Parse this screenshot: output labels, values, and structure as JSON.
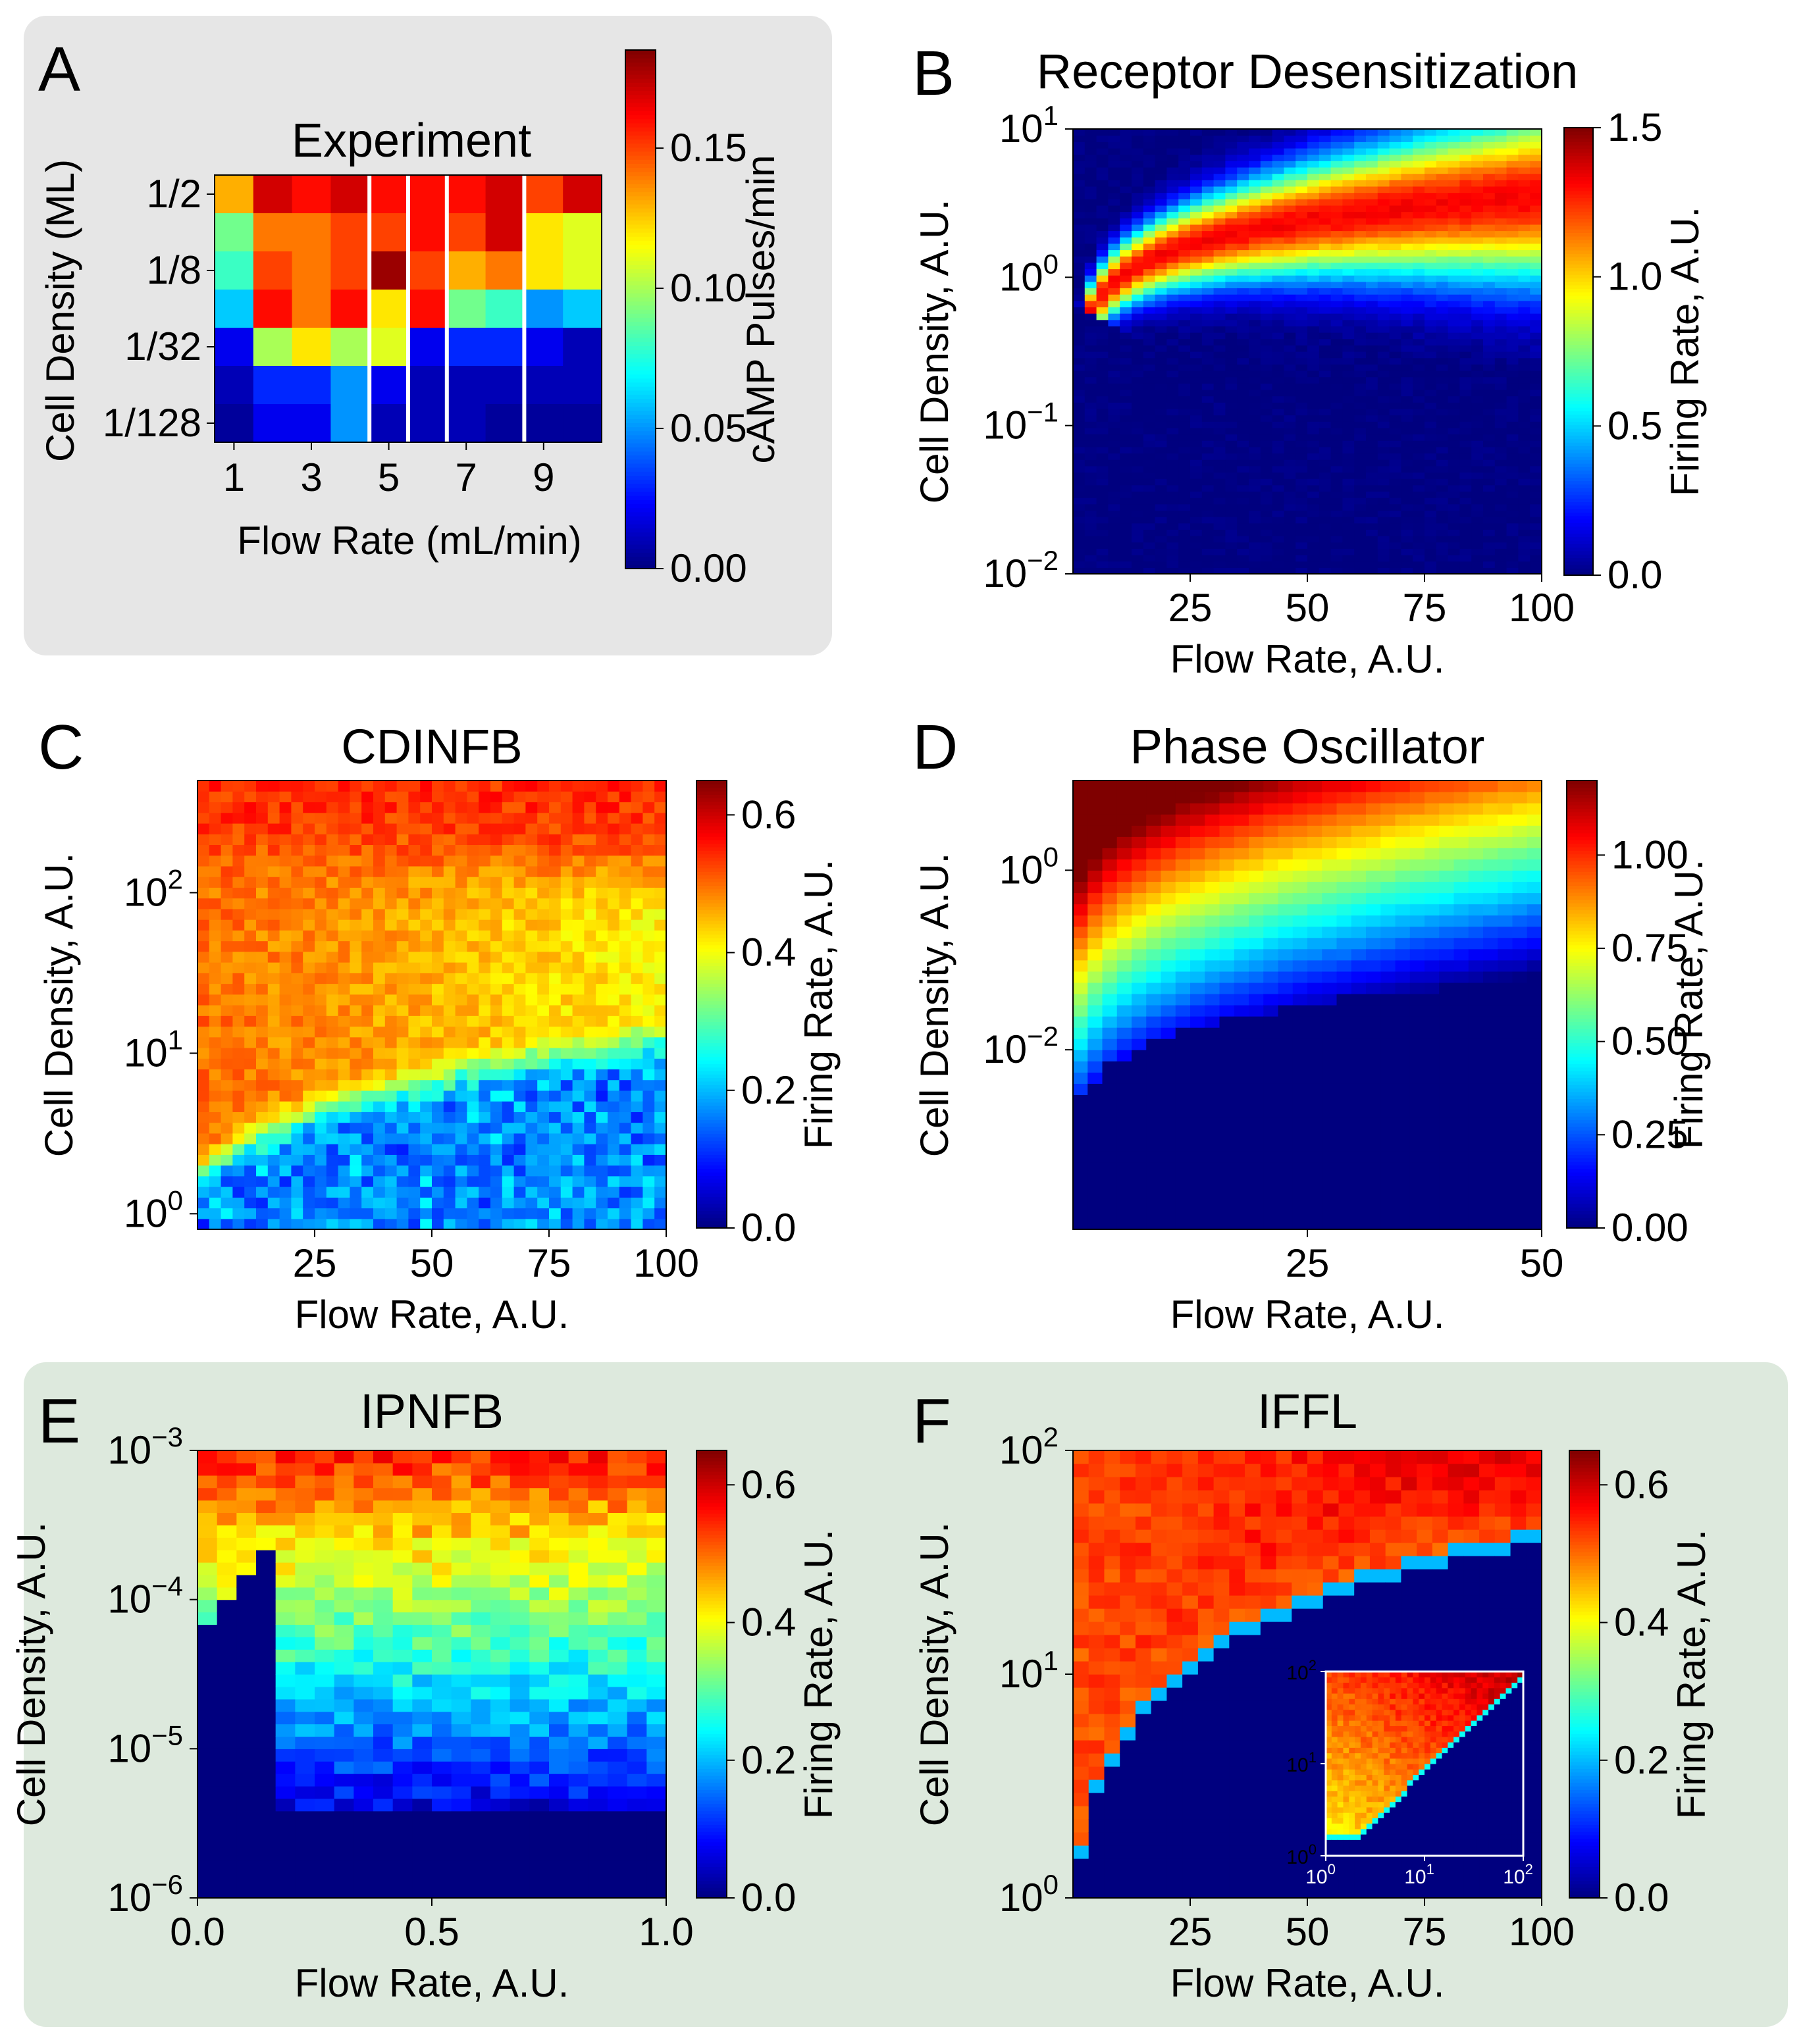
{
  "figure": {
    "panel_letters": [
      "A",
      "B",
      "C",
      "D",
      "E",
      "F"
    ],
    "colormap": [
      "#00007f",
      "#0000ff",
      "#007fff",
      "#00ffff",
      "#7fff7f",
      "#ffff00",
      "#ff7f00",
      "#ff0000",
      "#7f0000"
    ],
    "panel_bg": {
      "A": "#e6e6e6",
      "EF": "#dde9dd"
    }
  },
  "chart_data": [
    {
      "panel": "A",
      "type": "heatmap",
      "title": "Experiment",
      "title_color": "#000000",
      "xlabel": "Flow Rate (mL/min)",
      "ylabel": "Cell Density (ML)",
      "x_ticks": [
        "1",
        "3",
        "5",
        "7",
        "9"
      ],
      "y_ticks": [
        "1/2",
        "1/8",
        "1/32",
        "1/128"
      ],
      "colorbar_label": "cAMP Pulses/min",
      "colorbar_ticks": [
        "0.00",
        "0.05",
        "0.10",
        "0.15"
      ],
      "clim": [
        0,
        0.185
      ],
      "white_column_separators_after_flow": [
        4,
        5,
        6,
        8
      ],
      "rows": 7,
      "cols": 10,
      "values": [
        [
          0.13,
          0.17,
          0.16,
          0.17,
          0.16,
          0.16,
          0.16,
          0.17,
          0.15,
          0.17
        ],
        [
          0.09,
          0.14,
          0.14,
          0.15,
          0.15,
          0.16,
          0.15,
          0.17,
          0.12,
          0.11
        ],
        [
          0.08,
          0.15,
          0.14,
          0.15,
          0.18,
          0.15,
          0.13,
          0.14,
          0.12,
          0.11
        ],
        [
          0.06,
          0.16,
          0.14,
          0.16,
          0.12,
          0.16,
          0.09,
          0.08,
          0.05,
          0.06
        ],
        [
          0.02,
          0.1,
          0.12,
          0.1,
          0.11,
          0.02,
          0.03,
          0.03,
          0.02,
          0.01
        ],
        [
          0.01,
          0.03,
          0.03,
          0.05,
          0.02,
          0.01,
          0.01,
          0.01,
          0.01,
          0.01
        ],
        [
          0.005,
          0.02,
          0.02,
          0.05,
          0.01,
          0.01,
          0.01,
          0.005,
          0.005,
          0.005
        ]
      ]
    },
    {
      "panel": "B",
      "type": "heatmap",
      "title": "Receptor Desensitization",
      "title_color": "#f08a8a",
      "xlabel": "Flow Rate, A.U.",
      "ylabel": "Cell Density, A.U.",
      "x_ticks": [
        "25",
        "50",
        "75",
        "100"
      ],
      "x_tick_values": [
        25,
        50,
        75,
        100
      ],
      "xlim": [
        0,
        100
      ],
      "y_scale": "log",
      "ylim": [
        0.01,
        10
      ],
      "y_tick_values": [
        0.01,
        0.1,
        1,
        10
      ],
      "y_tick_base": "10",
      "y_tick_exponents": [
        "−2",
        "−1",
        "0",
        "1"
      ],
      "colorbar_label": "Firing Rate, A.U.",
      "colorbar_ticks": [
        "0.0",
        "0.5",
        "1.0",
        "1.5"
      ],
      "clim": [
        0,
        1.5
      ],
      "firing_region": "band rising from (5, 0.3) to (100, 1–10); peak ≈1.3 along its centre, 0 below the band"
    },
    {
      "panel": "C",
      "type": "heatmap",
      "title": "CDINFB",
      "title_color": "#e8c56a",
      "xlabel": "Flow Rate, A.U.",
      "ylabel": "Cell Density, A.U.",
      "x_ticks": [
        "25",
        "50",
        "75",
        "100"
      ],
      "x_tick_values": [
        25,
        50,
        75,
        100
      ],
      "xlim": [
        0,
        100
      ],
      "y_scale": "log",
      "ylim": [
        0.8,
        500
      ],
      "y_tick_values": [
        1,
        10,
        100
      ],
      "y_tick_base": "10",
      "y_tick_exponents": [
        "0",
        "1",
        "2"
      ],
      "colorbar_label": "Firing Rate, A.U.",
      "colorbar_ticks": [
        "0.0",
        "0.2",
        "0.4",
        "0.6"
      ],
      "clim": [
        0,
        0.65
      ],
      "firing_region": "≈0.5 at high density, falling to ≈0.05–0.2 below a boundary rising from density ≈2 at low flow to ≈10 at flow 100"
    },
    {
      "panel": "D",
      "type": "heatmap",
      "title": "Phase Oscillator",
      "title_color": "#8fc46a",
      "xlabel": "Flow Rate, A.U.",
      "ylabel": "Cell Density, A.U.",
      "x_ticks": [
        "25",
        "50"
      ],
      "x_tick_values": [
        25,
        50
      ],
      "xlim": [
        0,
        50
      ],
      "y_scale": "log",
      "ylim": [
        0.0001,
        10
      ],
      "y_tick_values": [
        0.01,
        1
      ],
      "y_tick_base": "10",
      "y_tick_exponents": [
        "−2",
        "0"
      ],
      "colorbar_label": "Firing Rate, A.U.",
      "colorbar_ticks": [
        "0.00",
        "0.25",
        "0.50",
        "0.75",
        "1.00"
      ],
      "clim": [
        0,
        1.2
      ],
      "firing_region": "≈1.0 at top-left, decreasing with flow and density; zero below a boundary from (1, 0.003) to (50, 0.05)"
    },
    {
      "panel": "E",
      "type": "heatmap",
      "title": "IPNFB",
      "title_color": "#9a6ab4",
      "xlabel": "Flow Rate, A.U.",
      "ylabel": "Cell Density, A.U.",
      "x_ticks": [
        "0.0",
        "0.5",
        "1.0"
      ],
      "x_tick_values": [
        0,
        0.5,
        1
      ],
      "xlim": [
        0,
        1
      ],
      "y_scale": "log",
      "ylim": [
        1e-06,
        0.001
      ],
      "y_tick_values": [
        1e-06,
        1e-05,
        0.0001,
        0.001
      ],
      "y_tick_base": "10",
      "y_tick_exponents": [
        "−6",
        "−5",
        "−4",
        "−3"
      ],
      "colorbar_label": "Firing Rate, A.U.",
      "colorbar_ticks": [
        "0.0",
        "0.2",
        "0.4",
        "0.6"
      ],
      "clim": [
        0,
        0.65
      ],
      "firing_region": "≈0.55 at top, decreasing downward; zero for flow below ≈0.2 (except near the top) and for density below ≈3e-6"
    },
    {
      "panel": "F",
      "type": "heatmap",
      "title": "IFFL",
      "title_color": "#7ec8e0",
      "xlabel": "Flow Rate, A.U.",
      "ylabel": "Cell Density, A.U.",
      "x_ticks": [
        "25",
        "50",
        "75",
        "100"
      ],
      "x_tick_values": [
        25,
        50,
        75,
        100
      ],
      "xlim": [
        0,
        100
      ],
      "y_scale": "log",
      "ylim": [
        1,
        100
      ],
      "y_tick_values": [
        1,
        10,
        100
      ],
      "y_tick_base": "10",
      "y_tick_exponents": [
        "0",
        "1",
        "2"
      ],
      "colorbar_label": "Firing Rate, A.U.",
      "colorbar_ticks": [
        "0.0",
        "0.2",
        "0.4",
        "0.6"
      ],
      "clim": [
        0,
        0.65
      ],
      "firing_region": "≈0.6 above a boundary rising from (1, 1) to (100, 40); zero below",
      "inset": {
        "type": "heatmap",
        "x_scale": "log",
        "y_scale": "log",
        "xlim": [
          1,
          100
        ],
        "ylim": [
          1,
          100
        ],
        "tick_values": [
          1,
          10,
          100
        ],
        "tick_base": "10",
        "tick_exponents": [
          "0",
          "1",
          "2"
        ],
        "firing_region": "wedge above the line density ≈ 0.8·flow^1.1 and above density ≈1.7; ≈0.45–0.6 inside, zero outside"
      }
    }
  ]
}
